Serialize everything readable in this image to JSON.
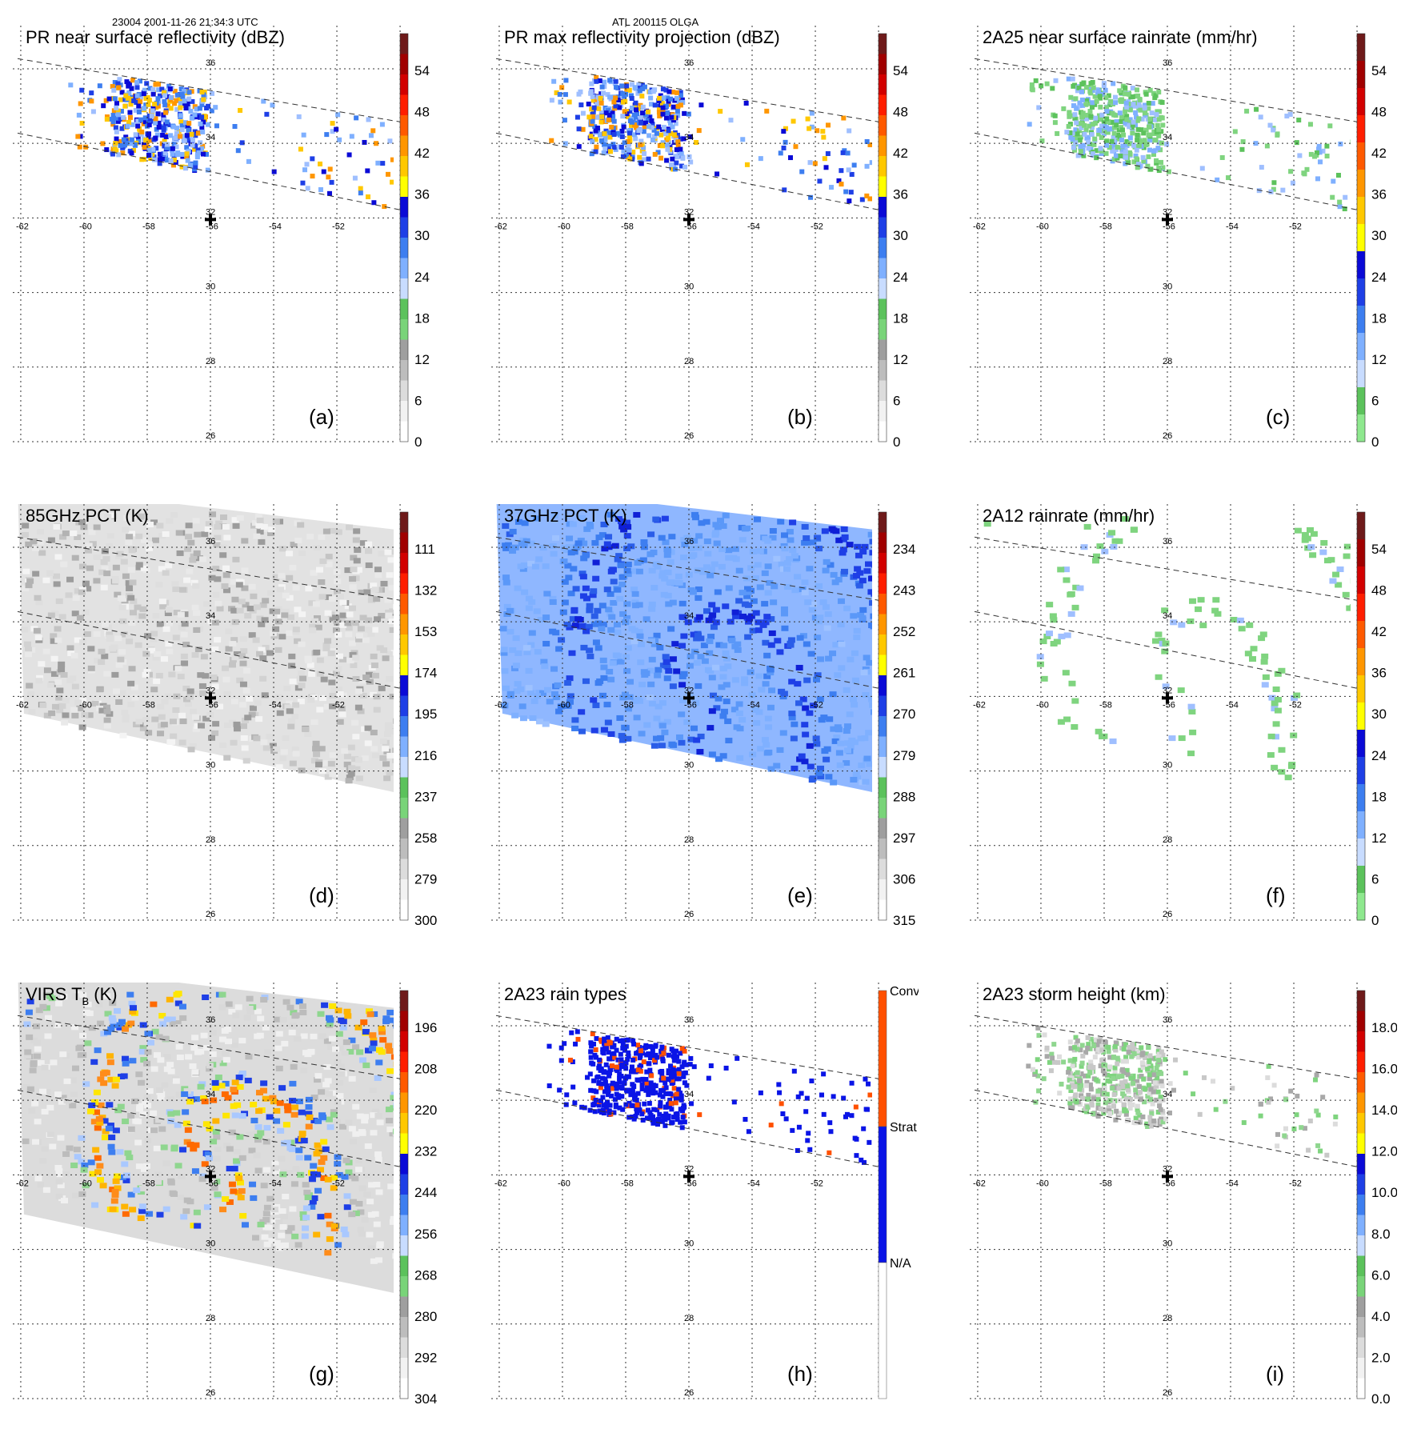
{
  "header": {
    "left": "23004 2001-11-26 21:34:3 UTC",
    "center": "ATL 200115 OLGA"
  },
  "geo": {
    "lon_ticks": [
      "-62",
      "-60",
      "-58",
      "-56",
      "-54",
      "-52"
    ],
    "lat_ticks": [
      "36",
      "34",
      "32",
      "30",
      "28",
      "26"
    ]
  },
  "chart_data": [
    {
      "id": "a",
      "type": "heatmap",
      "title": "PR near surface reflectivity (dBZ)",
      "letter": "(a)",
      "mode": "pr_swath",
      "colorbar": [
        "54",
        "48",
        "42",
        "36",
        "30",
        "24",
        "18",
        "12",
        "6",
        "0"
      ],
      "scale": "refl"
    },
    {
      "id": "b",
      "type": "heatmap",
      "title": "PR max reflectivity projection (dBZ)",
      "letter": "(b)",
      "mode": "pr_swath",
      "colorbar": [
        "54",
        "48",
        "42",
        "36",
        "30",
        "24",
        "18",
        "12",
        "6",
        "0"
      ],
      "scale": "refl"
    },
    {
      "id": "c",
      "type": "heatmap",
      "title": "2A25 near surface rainrate (mm/hr)",
      "letter": "(c)",
      "mode": "pr_swath",
      "colorbar": [
        "54",
        "48",
        "42",
        "36",
        "30",
        "24",
        "18",
        "12",
        "6",
        "0"
      ],
      "scale": "rain"
    },
    {
      "id": "d",
      "type": "heatmap",
      "title": "85GHz PCT (K)",
      "letter": "(d)",
      "mode": "tmi_swath",
      "colorbar": [
        "111",
        "132",
        "153",
        "174",
        "195",
        "216",
        "237",
        "258",
        "279",
        "300"
      ],
      "scale": "pct85"
    },
    {
      "id": "e",
      "type": "heatmap",
      "title": "37GHz PCT (K)",
      "letter": "(e)",
      "mode": "tmi_swath",
      "colorbar": [
        "234",
        "243",
        "252",
        "261",
        "270",
        "279",
        "288",
        "297",
        "306",
        "315"
      ],
      "scale": "pct37"
    },
    {
      "id": "f",
      "type": "heatmap",
      "title": "2A12 rainrate (mm/hr)",
      "letter": "(f)",
      "mode": "tmi_swath",
      "colorbar": [
        "54",
        "48",
        "42",
        "36",
        "30",
        "24",
        "18",
        "12",
        "6",
        "0"
      ],
      "scale": "rain"
    },
    {
      "id": "g",
      "type": "heatmap",
      "title": "VIRS T",
      "title_sub": "B",
      "title_tail": " (K)",
      "letter": "(g)",
      "mode": "virs_swath",
      "colorbar": [
        "196",
        "208",
        "220",
        "232",
        "244",
        "256",
        "268",
        "280",
        "292",
        "304"
      ],
      "scale": "virs"
    },
    {
      "id": "h",
      "type": "heatmap",
      "title": "2A23 rain types",
      "letter": "(h)",
      "mode": "pr_swath",
      "colorbar_categories": [
        "Conv",
        "Strat",
        "N/A"
      ],
      "scale": "types"
    },
    {
      "id": "i",
      "type": "heatmap",
      "title": "2A23 storm height (km)",
      "letter": "(i)",
      "mode": "pr_swath",
      "colorbar": [
        "18.0",
        "16.0",
        "14.0",
        "12.0",
        "10.0",
        "8.0",
        "6.0",
        "4.0",
        "2.0",
        "0.0"
      ],
      "scale": "height"
    }
  ],
  "colors": {
    "refl": [
      "#ffffff",
      "#f2f2f2",
      "#dcdcdc",
      "#bdbdbd",
      "#9f9f9f",
      "#79d479",
      "#5cc25c",
      "#c8dcff",
      "#7fb0ff",
      "#3d7ef0",
      "#1e3fe6",
      "#0a0ad6",
      "#ffff00",
      "#ffc800",
      "#ff9600",
      "#ff5a00",
      "#ff1e00",
      "#d20000",
      "#a00000",
      "#6e1a1a"
    ],
    "rain": [
      "#8ee88e",
      "#5cc25c",
      "#c8dcff",
      "#7fb0ff",
      "#3d7ef0",
      "#1e3fe6",
      "#0a0ad6",
      "#ffff00",
      "#ffc800",
      "#ff9600",
      "#ff5a00",
      "#ff1e00",
      "#d20000",
      "#a00000",
      "#6e1a1a"
    ],
    "types": {
      "conv": "#ff5000",
      "strat": "#0a14e6",
      "na": "#ffffff"
    }
  }
}
